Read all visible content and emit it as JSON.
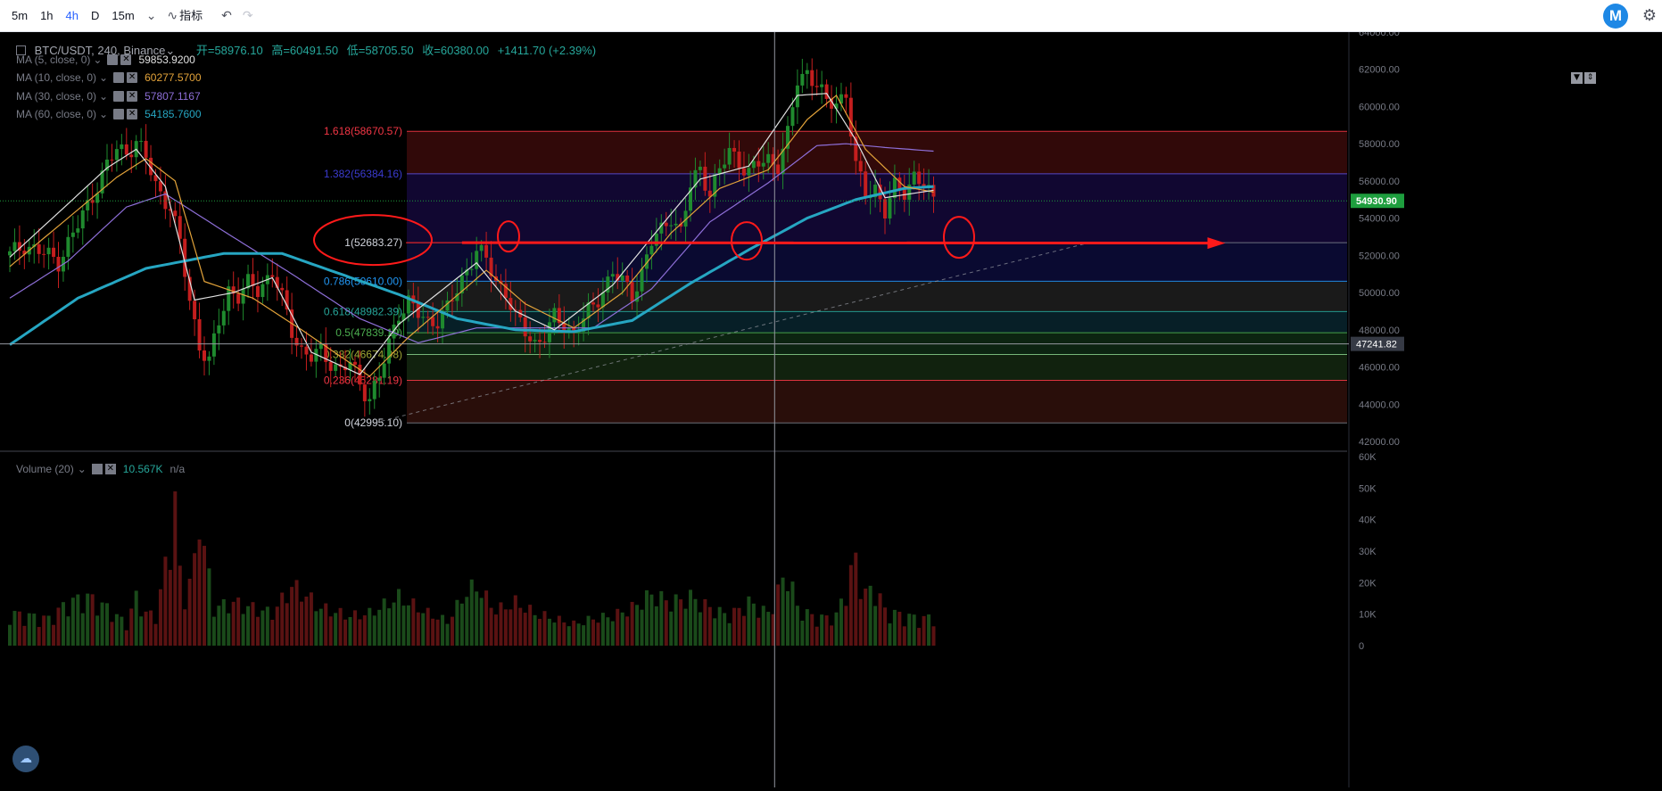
{
  "toolbar": {
    "timeframes": [
      {
        "label": "5m",
        "active": false
      },
      {
        "label": "1h",
        "active": false
      },
      {
        "label": "4h",
        "active": true
      },
      {
        "label": "D",
        "active": false
      },
      {
        "label": "15m",
        "active": false
      }
    ],
    "dropdown_icon": "chevron-down-icon",
    "indicators_label": "指标",
    "undo_icon": "undo-icon",
    "redo_icon": "redo-icon",
    "logo_letter": "M",
    "settings_icon": "gear-icon"
  },
  "symbol": {
    "name": "BTC/USDT, 240, Binance",
    "open_label": "开",
    "open": "58976.10",
    "high_label": "高",
    "high": "60491.50",
    "low_label": "低",
    "low": "58705.50",
    "close_label": "收",
    "close": "60380.00",
    "change": "+1411.70 (+2.39%)"
  },
  "ma_legend": [
    {
      "label": "MA (5, close, 0)",
      "value": "59853.9200",
      "color": "#e0e0e0"
    },
    {
      "label": "MA (10, close, 0)",
      "value": "60277.5700",
      "color": "#e3a33a"
    },
    {
      "label": "MA (30, close, 0)",
      "value": "57807.1167",
      "color": "#8e6fd8"
    },
    {
      "label": "MA (60, close, 0)",
      "value": "54185.7600",
      "color": "#26a6c2"
    }
  ],
  "volume_legend": {
    "label": "Volume (20)",
    "value": "10.567K",
    "extra": "n/a"
  },
  "price_axis": {
    "ticks": [
      "64000.00",
      "62000.00",
      "60000.00",
      "58000.00",
      "56000.00",
      "54000.00",
      "52000.00",
      "50000.00",
      "48000.00",
      "46000.00",
      "44000.00",
      "42000.00"
    ],
    "current_price": "54930.90",
    "crosshair_price": "47241.82"
  },
  "volume_axis": {
    "ticks": [
      "60K",
      "50K",
      "40K",
      "30K",
      "20K",
      "10K",
      "0"
    ]
  },
  "fib_levels": [
    {
      "label": "1.618(58670.57)",
      "ratio": 1.618,
      "price": 58670.57,
      "line_color": "#f23645",
      "fill": "#3a0a0a",
      "label_color": "#f23645"
    },
    {
      "label": "1.382(56384.16)",
      "ratio": 1.382,
      "price": 56384.16,
      "line_color": "#5b4fd8",
      "fill": "#14083a",
      "label_color": "#3b3bd0"
    },
    {
      "label": "1(52683.27)",
      "ratio": 1,
      "price": 52683.27,
      "line_color": "#787b86",
      "fill": "#0c0c3a",
      "label_color": "#d1d4dc"
    },
    {
      "label": "0.786(50610.00)",
      "ratio": 0.786,
      "price": 50610.0,
      "line_color": "#2196f3",
      "fill": "#1e1e1e",
      "label_color": "#2196f3"
    },
    {
      "label": "0.618(48982.39)",
      "ratio": 0.618,
      "price": 48982.39,
      "line_color": "#26a69a",
      "fill": "#08242e",
      "label_color": "#26a69a"
    },
    {
      "label": "0.5(47839.19)",
      "ratio": 0.5,
      "price": 47839.19,
      "line_color": "#4caf50",
      "fill": "#0e2a14",
      "label_color": "#4caf50"
    },
    {
      "label": "0.382(46674.98)",
      "ratio": 0.382,
      "price": 46674.98,
      "line_color": "#81c784",
      "fill": "#142810",
      "label_color": "#9ea634"
    },
    {
      "label": "0.236(45281.19)",
      "ratio": 0.236,
      "price": 45281.19,
      "line_color": "#f23645",
      "fill": "#2a2808",
      "label_color": "#f23645"
    },
    {
      "label": "0(42995.10)",
      "ratio": 0,
      "price": 42995.1,
      "line_color": "#787b86",
      "fill": "#2a0a0a",
      "label_color": "#d1d4dc"
    }
  ],
  "colors": {
    "up": "#1f8a2e",
    "down": "#c41e1e",
    "vol_up": "#1a4a1a",
    "vol_down": "#5a1212",
    "annotation": "#ff1a1a",
    "price_tag": "#1e9e3e"
  },
  "chart_data": {
    "type": "candlestick",
    "price_range": [
      42000,
      64000
    ],
    "volume_range": [
      0,
      60000
    ],
    "close_path": [
      [
        0,
        52000
      ],
      [
        3,
        52600
      ],
      [
        6,
        52200
      ],
      [
        10,
        51700
      ],
      [
        14,
        53600
      ],
      [
        18,
        55800
      ],
      [
        20,
        56800
      ],
      [
        22,
        57700
      ],
      [
        24,
        57600
      ],
      [
        26,
        58100
      ],
      [
        28,
        57200
      ],
      [
        30,
        55800
      ],
      [
        33,
        54600
      ],
      [
        35,
        52600
      ],
      [
        37,
        49600
      ],
      [
        39,
        47200
      ],
      [
        41,
        46200
      ],
      [
        43,
        48400
      ],
      [
        45,
        50200
      ],
      [
        47,
        49800
      ],
      [
        49,
        50400
      ],
      [
        51,
        50200
      ],
      [
        54,
        51100
      ],
      [
        56,
        49600
      ],
      [
        58,
        48000
      ],
      [
        60,
        46900
      ],
      [
        62,
        46500
      ],
      [
        64,
        46800
      ],
      [
        66,
        46300
      ],
      [
        68,
        45800
      ],
      [
        70,
        46200
      ],
      [
        72,
        45100
      ],
      [
        74,
        44400
      ],
      [
        76,
        45400
      ],
      [
        78,
        47200
      ],
      [
        80,
        49000
      ],
      [
        82,
        49500
      ],
      [
        84,
        48800
      ],
      [
        86,
        48400
      ],
      [
        88,
        48600
      ],
      [
        90,
        49100
      ],
      [
        92,
        50100
      ],
      [
        94,
        51300
      ],
      [
        96,
        52300
      ],
      [
        98,
        51700
      ],
      [
        100,
        50600
      ],
      [
        102,
        50100
      ],
      [
        104,
        48600
      ],
      [
        106,
        47900
      ],
      [
        108,
        47300
      ],
      [
        110,
        47700
      ],
      [
        112,
        48600
      ],
      [
        114,
        48300
      ],
      [
        116,
        47800
      ],
      [
        118,
        48600
      ],
      [
        120,
        49200
      ],
      [
        122,
        50200
      ],
      [
        124,
        51100
      ],
      [
        126,
        50500
      ],
      [
        128,
        49900
      ],
      [
        130,
        51100
      ],
      [
        132,
        52700
      ],
      [
        134,
        53300
      ],
      [
        136,
        54200
      ],
      [
        138,
        53200
      ],
      [
        140,
        55700
      ],
      [
        142,
        56700
      ],
      [
        144,
        55400
      ],
      [
        146,
        56500
      ],
      [
        148,
        57600
      ],
      [
        150,
        57100
      ],
      [
        152,
        56400
      ],
      [
        154,
        56900
      ],
      [
        156,
        57200
      ],
      [
        158,
        56900
      ],
      [
        160,
        58400
      ],
      [
        162,
        61400
      ],
      [
        164,
        61900
      ],
      [
        166,
        61200
      ],
      [
        168,
        60100
      ],
      [
        170,
        60300
      ],
      [
        172,
        60700
      ],
      [
        174,
        56700
      ],
      [
        176,
        55300
      ],
      [
        178,
        55700
      ],
      [
        180,
        54300
      ],
      [
        182,
        55600
      ],
      [
        184,
        55500
      ],
      [
        186,
        56300
      ],
      [
        188,
        55700
      ],
      [
        190,
        54900
      ]
    ],
    "volume_path": [
      [
        0,
        12
      ],
      [
        8,
        10
      ],
      [
        12,
        16
      ],
      [
        16,
        18
      ],
      [
        20,
        14
      ],
      [
        24,
        8
      ],
      [
        26,
        18
      ],
      [
        28,
        12
      ],
      [
        30,
        11
      ],
      [
        33,
        38
      ],
      [
        34,
        55
      ],
      [
        35,
        26
      ],
      [
        36,
        18
      ],
      [
        38,
        30
      ],
      [
        39,
        52
      ],
      [
        40,
        36
      ],
      [
        42,
        14
      ],
      [
        46,
        16
      ],
      [
        50,
        14
      ],
      [
        54,
        12
      ],
      [
        58,
        22
      ],
      [
        60,
        20
      ],
      [
        64,
        14
      ],
      [
        70,
        11
      ],
      [
        74,
        12
      ],
      [
        80,
        18
      ],
      [
        86,
        12
      ],
      [
        90,
        9
      ],
      [
        94,
        20
      ],
      [
        96,
        22
      ],
      [
        100,
        13
      ],
      [
        104,
        16
      ],
      [
        108,
        12
      ],
      [
        112,
        10
      ],
      [
        116,
        8
      ],
      [
        120,
        10
      ],
      [
        124,
        11
      ],
      [
        128,
        14
      ],
      [
        132,
        19
      ],
      [
        136,
        16
      ],
      [
        140,
        18
      ],
      [
        144,
        14
      ],
      [
        148,
        11
      ],
      [
        152,
        16
      ],
      [
        156,
        12
      ],
      [
        160,
        28
      ],
      [
        162,
        14
      ],
      [
        166,
        10
      ],
      [
        170,
        11
      ],
      [
        174,
        32
      ],
      [
        176,
        19
      ],
      [
        178,
        22
      ],
      [
        180,
        13
      ],
      [
        184,
        11
      ],
      [
        188,
        10
      ],
      [
        190,
        11
      ]
    ],
    "ma5": [
      [
        0,
        51900
      ],
      [
        20,
        56700
      ],
      [
        26,
        57700
      ],
      [
        32,
        55700
      ],
      [
        38,
        49600
      ],
      [
        46,
        50000
      ],
      [
        54,
        50800
      ],
      [
        62,
        46800
      ],
      [
        72,
        45600
      ],
      [
        80,
        48300
      ],
      [
        96,
        51600
      ],
      [
        104,
        49000
      ],
      [
        112,
        48000
      ],
      [
        124,
        50400
      ],
      [
        134,
        53600
      ],
      [
        142,
        56100
      ],
      [
        152,
        56800
      ],
      [
        162,
        60600
      ],
      [
        168,
        60700
      ],
      [
        174,
        58200
      ],
      [
        180,
        55100
      ],
      [
        190,
        55500
      ]
    ],
    "ma10": [
      [
        0,
        51400
      ],
      [
        22,
        56200
      ],
      [
        28,
        57200
      ],
      [
        34,
        56000
      ],
      [
        40,
        50600
      ],
      [
        50,
        49700
      ],
      [
        60,
        48000
      ],
      [
        74,
        45500
      ],
      [
        82,
        47600
      ],
      [
        98,
        51200
      ],
      [
        106,
        49400
      ],
      [
        116,
        48100
      ],
      [
        126,
        50000
      ],
      [
        136,
        53200
      ],
      [
        146,
        55600
      ],
      [
        156,
        56600
      ],
      [
        164,
        59300
      ],
      [
        170,
        60600
      ],
      [
        176,
        57700
      ],
      [
        184,
        55700
      ],
      [
        190,
        55400
      ]
    ],
    "ma30": [
      [
        0,
        49700
      ],
      [
        12,
        51700
      ],
      [
        24,
        54600
      ],
      [
        32,
        55300
      ],
      [
        44,
        53300
      ],
      [
        58,
        51000
      ],
      [
        72,
        48600
      ],
      [
        84,
        47300
      ],
      [
        96,
        48100
      ],
      [
        108,
        48100
      ],
      [
        120,
        48100
      ],
      [
        132,
        50200
      ],
      [
        144,
        53800
      ],
      [
        156,
        55900
      ],
      [
        166,
        57900
      ],
      [
        172,
        58000
      ],
      [
        180,
        57800
      ],
      [
        190,
        57600
      ]
    ],
    "ma60": [
      [
        0,
        47200
      ],
      [
        14,
        49700
      ],
      [
        28,
        51300
      ],
      [
        44,
        52100
      ],
      [
        56,
        52100
      ],
      [
        68,
        51000
      ],
      [
        80,
        49900
      ],
      [
        92,
        48600
      ],
      [
        104,
        48000
      ],
      [
        116,
        47900
      ],
      [
        128,
        48500
      ],
      [
        140,
        50500
      ],
      [
        152,
        52300
      ],
      [
        164,
        54000
      ],
      [
        174,
        55000
      ],
      [
        184,
        55600
      ],
      [
        190,
        55700
      ]
    ],
    "annotations": {
      "horizontal_arrow": {
        "from_price": 52683.27,
        "from_bar": 93,
        "to_bar": 250
      },
      "ellipses": [
        "fib-1-label",
        "bar-96",
        "bar-139",
        "bar-181"
      ],
      "dashed_trendline": {
        "from_bar": 75,
        "from_price": 42995,
        "to_bar": 222,
        "to_price": 52683
      }
    }
  }
}
